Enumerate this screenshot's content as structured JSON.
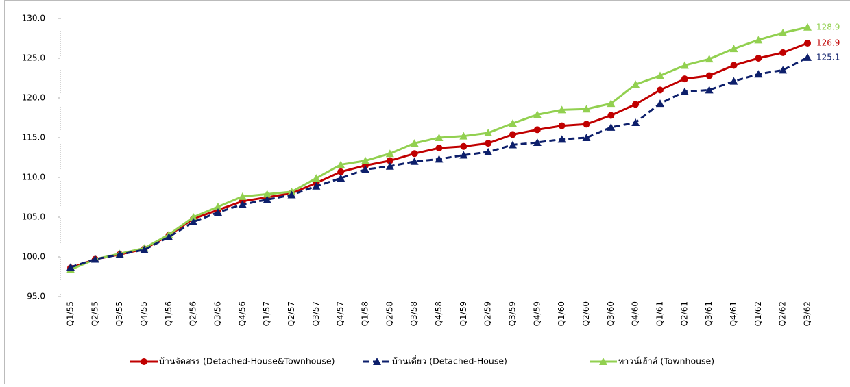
{
  "chart_data": {
    "type": "line",
    "categories": [
      "Q1/55",
      "Q2/55",
      "Q3/55",
      "Q4/55",
      "Q1/56",
      "Q2/56",
      "Q3/56",
      "Q4/56",
      "Q1/57",
      "Q2/57",
      "Q3/57",
      "Q4/57",
      "Q1/58",
      "Q2/58",
      "Q3/58",
      "Q4/58",
      "Q1/59",
      "Q2/59",
      "Q3/59",
      "Q4/59",
      "Q1/60",
      "Q2/60",
      "Q3/60",
      "Q4/60",
      "Q1/61",
      "Q2/61",
      "Q3/61",
      "Q4/61",
      "Q1/62",
      "Q2/62",
      "Q3/62"
    ],
    "series": [
      {
        "name": "บ้านจัดสรร (Detached-House&Townhouse)",
        "color": "#c00000",
        "marker": "circle",
        "dashed": false,
        "values": [
          98.6,
          99.7,
          100.3,
          101.0,
          102.7,
          104.8,
          105.9,
          107.0,
          107.5,
          108.0,
          109.3,
          110.7,
          111.5,
          112.1,
          113.0,
          113.7,
          113.9,
          114.3,
          115.4,
          116.0,
          116.5,
          116.7,
          117.8,
          119.2,
          121.0,
          122.4,
          122.8,
          124.1,
          125.0,
          125.7,
          126.9
        ]
      },
      {
        "name": "บ้านเดี่ยว (Detached-House)",
        "color": "#0d1f6b",
        "marker": "triangle",
        "dashed": true,
        "values": [
          98.7,
          99.7,
          100.3,
          100.9,
          102.5,
          104.4,
          105.6,
          106.6,
          107.2,
          107.8,
          108.9,
          109.9,
          111.0,
          111.4,
          112.0,
          112.3,
          112.8,
          113.2,
          114.1,
          114.4,
          114.8,
          115.0,
          116.3,
          116.9,
          119.3,
          120.8,
          121.0,
          122.1,
          123.0,
          123.5,
          125.1
        ]
      },
      {
        "name": "ทาวน์เฮ้าส์ (Townhouse)",
        "color": "#92d050",
        "marker": "triangle",
        "dashed": false,
        "values": [
          98.4,
          99.7,
          100.4,
          101.1,
          102.8,
          105.0,
          106.3,
          107.6,
          107.9,
          108.2,
          109.9,
          111.6,
          112.1,
          113.0,
          114.3,
          115.0,
          115.2,
          115.6,
          116.8,
          117.9,
          118.5,
          118.6,
          119.3,
          121.7,
          122.8,
          124.1,
          124.9,
          126.2,
          127.3,
          128.2,
          128.9
        ]
      }
    ],
    "ylim": [
      95,
      130
    ],
    "yticks": [
      {
        "value": 95,
        "label": "95.0"
      },
      {
        "value": 100,
        "label": "100.0"
      },
      {
        "value": 105,
        "label": "105.0"
      },
      {
        "value": 110,
        "label": "110.0"
      },
      {
        "value": 115,
        "label": "115.0"
      },
      {
        "value": 120,
        "label": "120.0"
      },
      {
        "value": 125,
        "label": "125.0"
      },
      {
        "value": 130,
        "label": "130.0"
      }
    ],
    "grid": false,
    "legend": "bottom"
  }
}
